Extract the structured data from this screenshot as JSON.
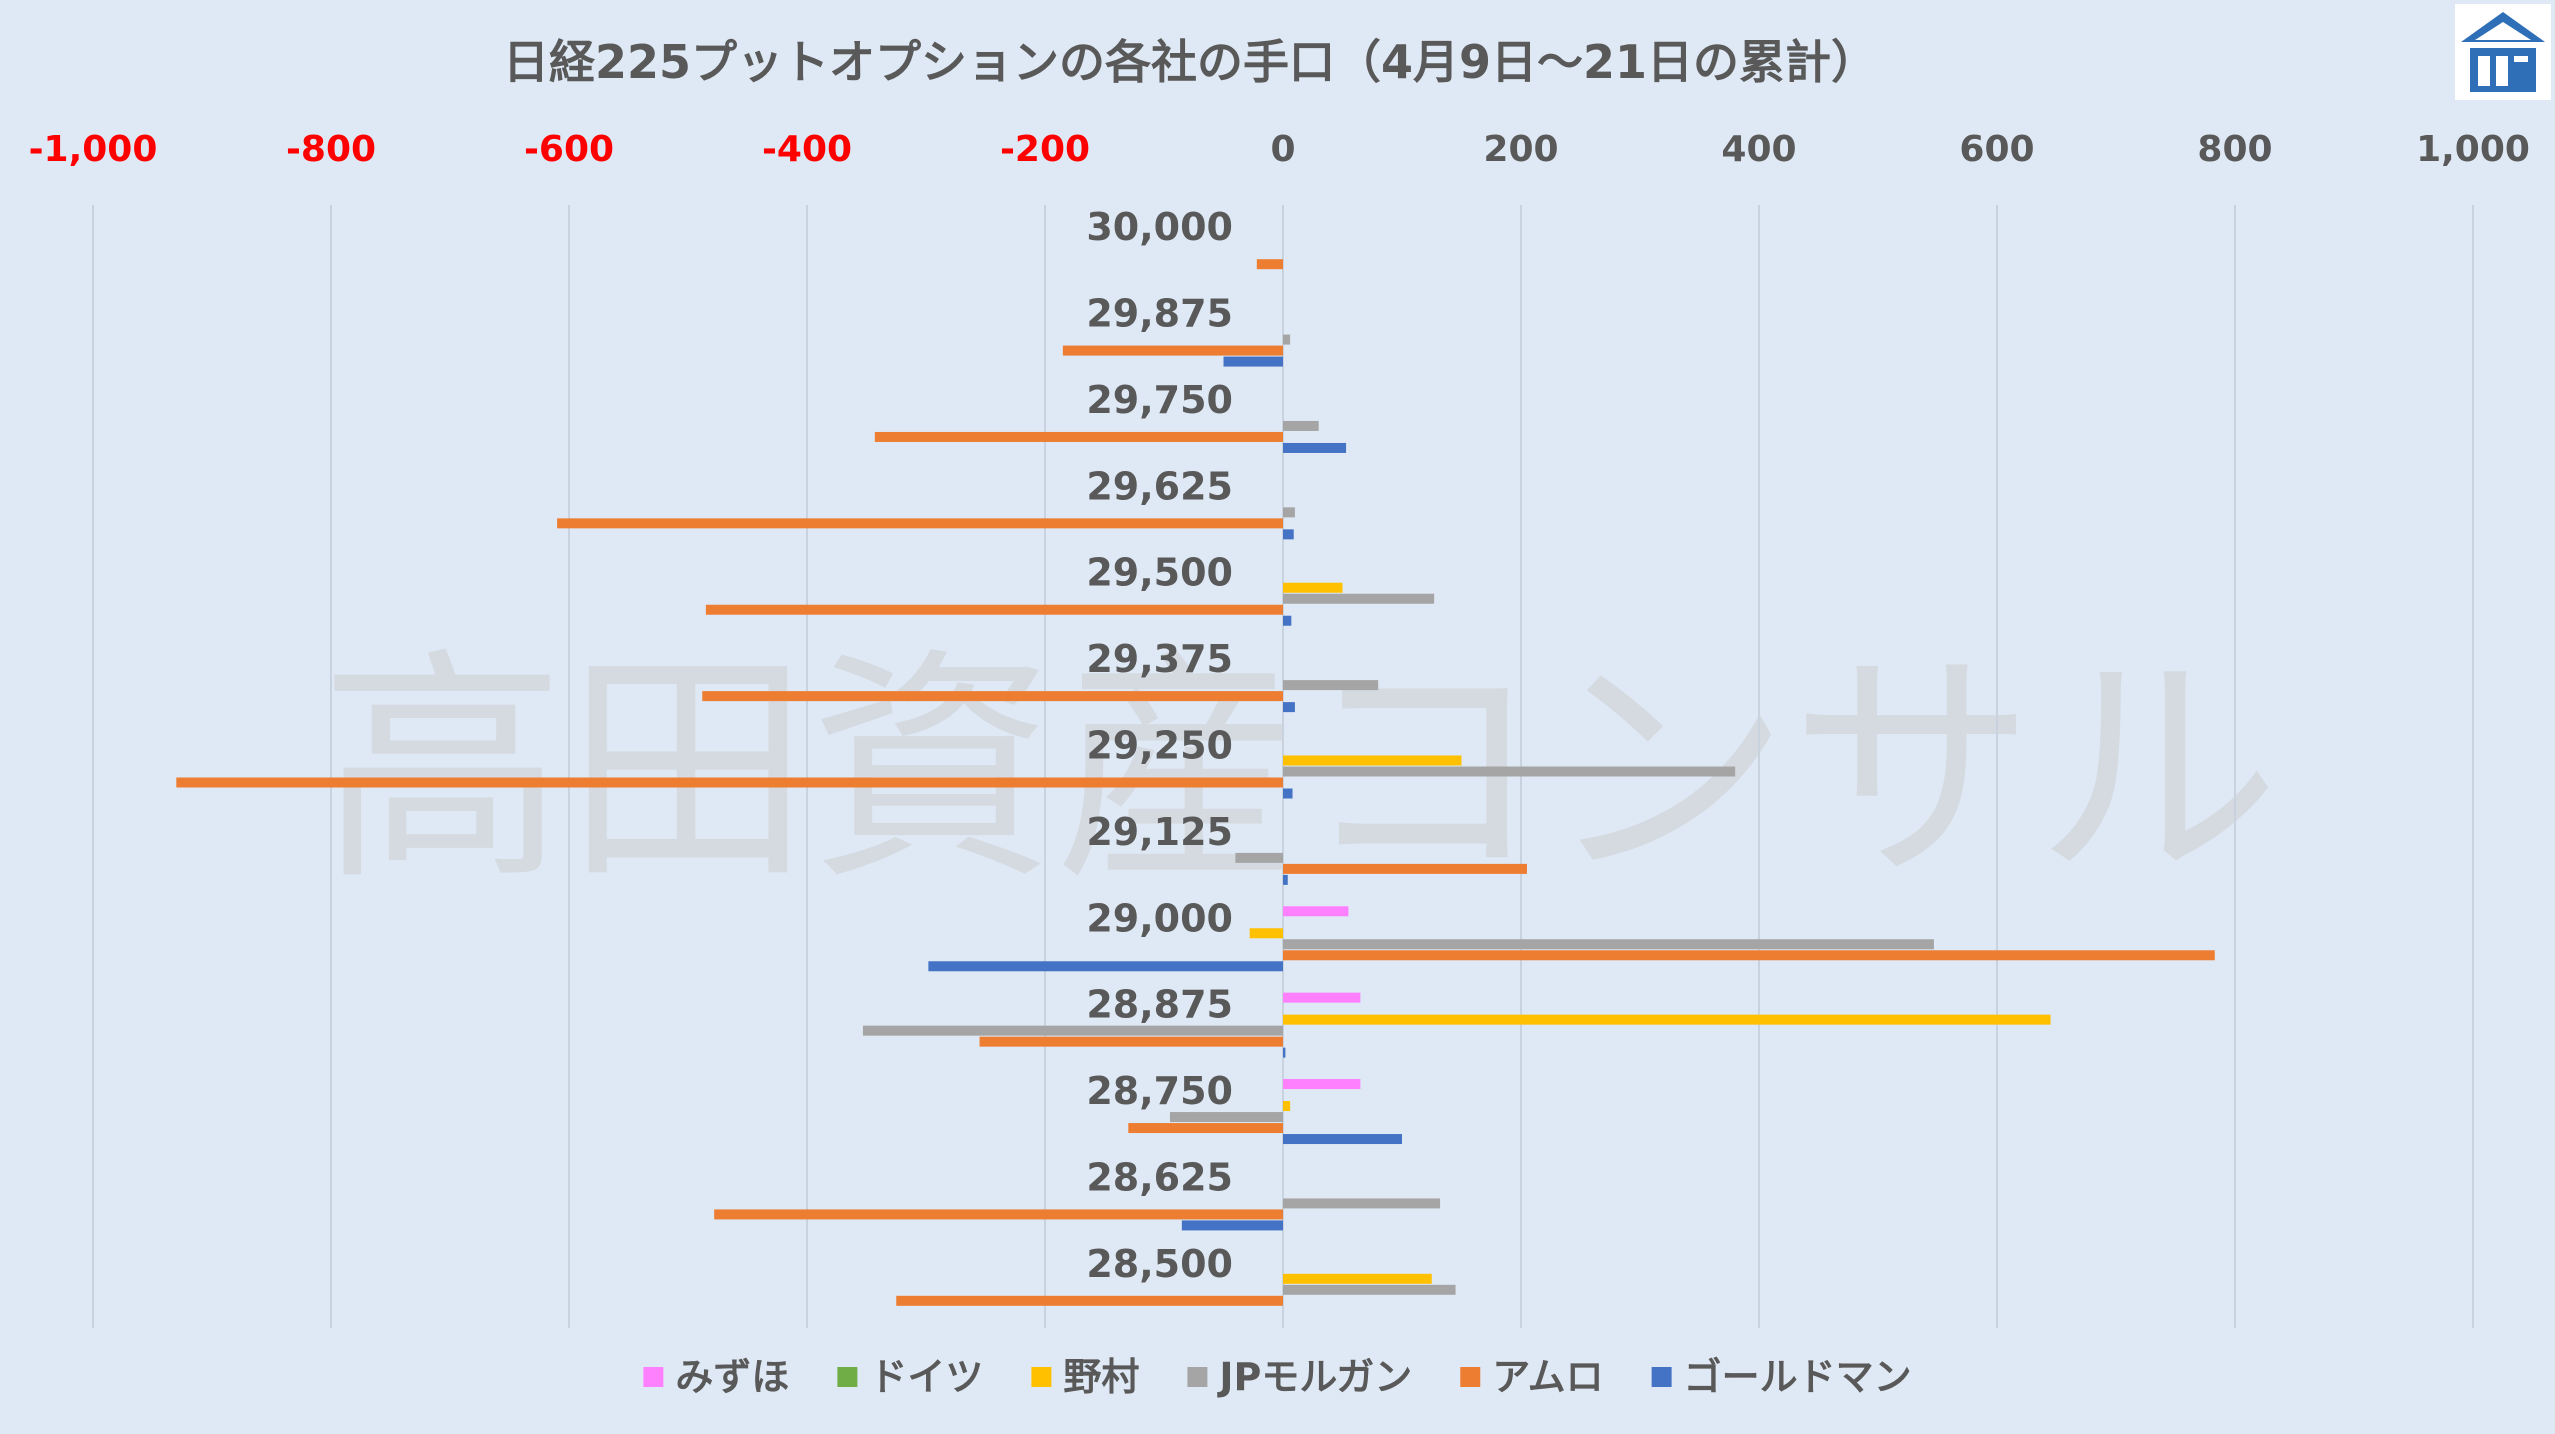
{
  "title": "日経225プットオプションの各社の手口（4月9日～21日の累計）",
  "watermark": "高田資産コンサル",
  "logo_icon": "house-logo-icon",
  "colors": {
    "background": "#dfe9f5",
    "grid": "#c8d3df",
    "negative_tick": "#ff0000",
    "text": "#595959"
  },
  "chart_data": {
    "type": "bar",
    "orientation": "horizontal",
    "title": "日経225プットオプションの各社の手口（4月9日～21日の累計）",
    "xlim": [
      -1000,
      1000
    ],
    "xticks": [
      -1000,
      -800,
      -600,
      -400,
      -200,
      0,
      200,
      400,
      600,
      800,
      1000
    ],
    "xtick_labels": [
      "-1,000",
      "-800",
      "-600",
      "-400",
      "-200",
      "0",
      "200",
      "400",
      "600",
      "800",
      "1,000"
    ],
    "grid": true,
    "legend_position": "bottom",
    "categories": [
      "30,000",
      "29,875",
      "29,750",
      "29,625",
      "29,500",
      "29,375",
      "29,250",
      "29,125",
      "29,000",
      "28,875",
      "28,750",
      "28,625",
      "28,500"
    ],
    "series": [
      {
        "name": "みずほ",
        "color": "#ff80ff",
        "values": [
          0,
          0,
          0,
          0,
          0,
          0,
          0,
          0,
          55,
          65,
          65,
          0,
          0
        ]
      },
      {
        "name": "ドイツ",
        "color": "#70ad47",
        "values": [
          0,
          0,
          0,
          0,
          0,
          0,
          0,
          0,
          0,
          0,
          0,
          0,
          0
        ]
      },
      {
        "name": "野村",
        "color": "#ffc000",
        "values": [
          0,
          0,
          0,
          0,
          50,
          0,
          150,
          0,
          -28,
          645,
          6,
          0,
          125
        ]
      },
      {
        "name": "JPモルガン",
        "color": "#a5a5a5",
        "values": [
          0,
          6,
          30,
          10,
          127,
          80,
          380,
          -40,
          547,
          -353,
          -95,
          132,
          145
        ]
      },
      {
        "name": "アムロ",
        "color": "#ed7d31",
        "values": [
          -22,
          -185,
          -343,
          -610,
          -485,
          -488,
          -930,
          205,
          783,
          -255,
          -130,
          -478,
          -325
        ]
      },
      {
        "name": "ゴールドマン",
        "color": "#4472c4",
        "values": [
          0,
          -50,
          53,
          9,
          7,
          10,
          8,
          4,
          -298,
          2,
          100,
          -85,
          0
        ]
      }
    ]
  }
}
